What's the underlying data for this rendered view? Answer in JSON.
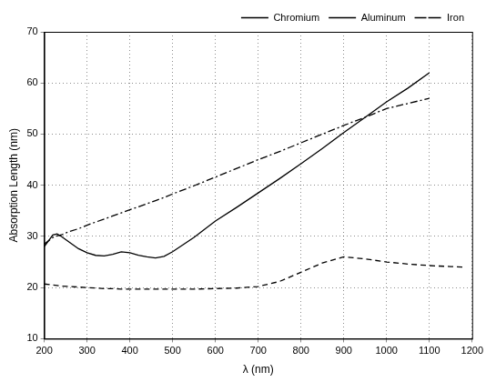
{
  "chart_data": {
    "type": "line",
    "x_label": "λ (nm)",
    "y_label": "Absorption Length (nm)",
    "x": [
      200,
      220,
      230,
      240,
      260,
      280,
      300,
      320,
      340,
      360,
      380,
      400,
      420,
      440,
      460,
      480,
      500,
      550,
      600,
      650,
      700,
      750,
      800,
      850,
      900,
      950,
      1000,
      1050,
      1100,
      1150,
      1180
    ],
    "series": [
      {
        "name": "Chromium",
        "color": "#000000",
        "line_style": "solid",
        "marker": "none",
        "values": [
          28,
          30.3,
          30.5,
          30,
          28.8,
          27.6,
          26.8,
          26.3,
          26.2,
          26.5,
          27,
          26.8,
          26.3,
          26,
          25.8,
          26.1,
          27,
          29.8,
          33,
          35.7,
          38.5,
          41.3,
          44.2,
          47.2,
          50.3,
          53.3,
          56.3,
          59,
          62,
          null,
          null
        ]
      },
      {
        "name": "Aluminum",
        "color": "#000000",
        "line_style": "dashed",
        "marker": "none",
        "values": [
          20.7,
          20.5,
          20.4,
          20.3,
          20.2,
          20.1,
          20,
          19.9,
          19.8,
          19.8,
          19.7,
          19.7,
          19.7,
          19.7,
          19.7,
          19.7,
          19.7,
          19.7,
          19.8,
          19.9,
          20.2,
          21.2,
          23,
          24.8,
          26,
          25.6,
          25,
          24.6,
          24.3,
          24.1,
          24
        ]
      },
      {
        "name": "Iron",
        "color": "#000000",
        "line_style": "dashdot",
        "marker": "none",
        "values": [
          28.5,
          29.8,
          30.1,
          30.3,
          31,
          31.5,
          32.2,
          32.8,
          33.4,
          34,
          34.6,
          35.2,
          35.8,
          36.4,
          37,
          37.6,
          38.3,
          39.9,
          41.6,
          43.3,
          45,
          46.6,
          48.3,
          50,
          51.7,
          53.3,
          55,
          56,
          57,
          null,
          null
        ]
      }
    ],
    "xlim": [
      200,
      1200
    ],
    "xticks": [
      200,
      300,
      400,
      500,
      600,
      700,
      800,
      900,
      1000,
      1100,
      1200
    ],
    "ylim": [
      10,
      70
    ],
    "yticks": [
      10,
      20,
      30,
      40,
      50,
      60,
      70
    ],
    "grid": true,
    "legend": "top-right"
  }
}
